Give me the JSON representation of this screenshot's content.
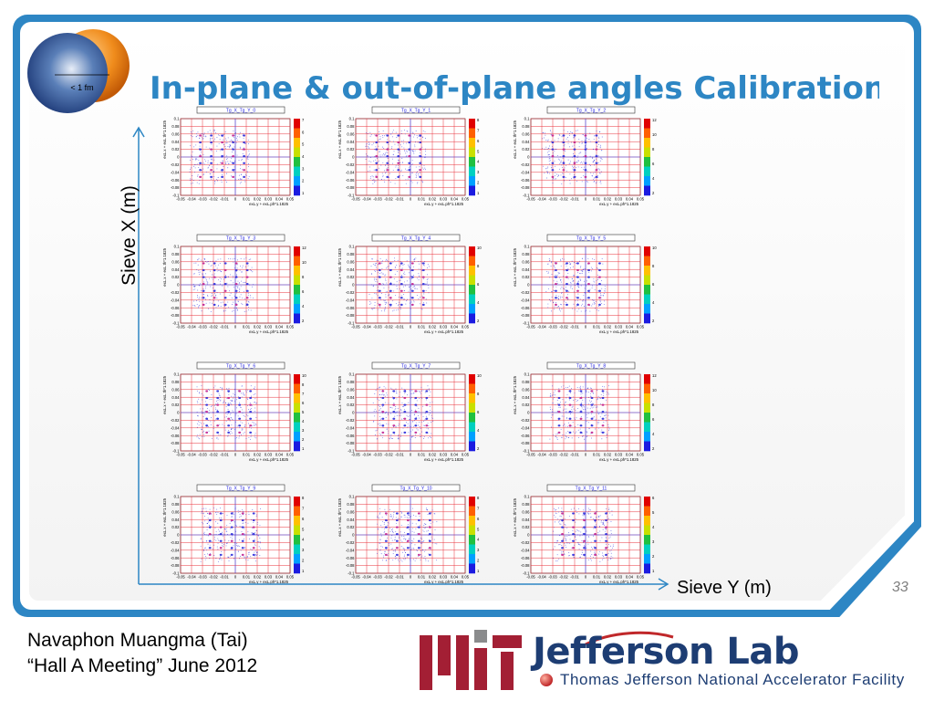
{
  "slide": {
    "title": "In-plane & out-of-plane angles Calibration",
    "logo_label": "< 1 fm",
    "y_axis_label": "Sieve X (m)",
    "x_axis_label": "Sieve Y (m)",
    "page_number": "33"
  },
  "footer": {
    "author": "Navaphon Muangma (Tai)",
    "event": "“Hall A Meeting” June 2012",
    "lab_name": "Jefferson Lab",
    "lab_full_name": "Thomas Jefferson National Accelerator Facility"
  },
  "colors": {
    "frame": "#2d86c4",
    "title": "#2d86c4",
    "grid": "#e8313b",
    "dots": "#2b2bdc",
    "mit_red": "#a31f34",
    "mit_gray": "#8a8b8c",
    "jlab_blue": "#1d3d73"
  },
  "plots": {
    "x_axis_title": "exL.y + exL.ph*1.1825",
    "y_axis_title": "exL.x + exL.th*1.1825",
    "x_ticks": [
      "-0.05",
      "-0.04",
      "-0.03",
      "-0.02",
      "-0.01",
      "0",
      "0.01",
      "0.02",
      "0.03",
      "0.04",
      "0.05"
    ],
    "y_ticks": [
      "0.1",
      "0.08",
      "0.06",
      "0.04",
      "0.02",
      "0",
      "-0.02",
      "-0.04",
      "-0.06",
      "-0.08",
      "-0.1"
    ],
    "panels": [
      {
        "title": "Tg_X_Tg_Y_0",
        "z_ticks": [
          "7",
          "6",
          "5",
          "4",
          "3",
          "2",
          "1"
        ],
        "row": 0,
        "col": 0
      },
      {
        "title": "Tg_X_Tg_Y_1",
        "z_ticks": [
          "8",
          "7",
          "6",
          "5",
          "4",
          "3",
          "2",
          "1"
        ],
        "row": 0,
        "col": 1
      },
      {
        "title": "Tg_X_Tg_Y_2",
        "z_ticks": [
          "12",
          "10",
          "8",
          "6",
          "4",
          "2"
        ],
        "row": 0,
        "col": 2
      },
      {
        "title": "Tg_X_Tg_Y_3",
        "z_ticks": [
          "12",
          "10",
          "8",
          "6",
          "4",
          "2"
        ],
        "row": 1,
        "col": 0
      },
      {
        "title": "Tg_X_Tg_Y_4",
        "z_ticks": [
          "10",
          "8",
          "6",
          "4",
          "2"
        ],
        "row": 1,
        "col": 1
      },
      {
        "title": "Tg_X_Tg_Y_5",
        "z_ticks": [
          "10",
          "8",
          "6",
          "4",
          "2"
        ],
        "row": 1,
        "col": 2
      },
      {
        "title": "Tg_X_Tg_Y_6",
        "z_ticks": [
          "10",
          "8",
          "7",
          "6",
          "5",
          "4",
          "3",
          "2",
          "1"
        ],
        "row": 2,
        "col": 0
      },
      {
        "title": "Tg_X_Tg_Y_7",
        "z_ticks": [
          "10",
          "8",
          "6",
          "4",
          "2"
        ],
        "row": 2,
        "col": 1
      },
      {
        "title": "Tg_X_Tg_Y_8",
        "z_ticks": [
          "12",
          "10",
          "8",
          "6",
          "4",
          "2"
        ],
        "row": 2,
        "col": 2
      },
      {
        "title": "Tg_X_Tg_Y_9",
        "z_ticks": [
          "8",
          "7",
          "6",
          "5",
          "4",
          "3",
          "2",
          "1"
        ],
        "row": 3,
        "col": 0
      },
      {
        "title": "Tg_X_Tg_Y_10",
        "z_ticks": [
          "8",
          "7",
          "6",
          "5",
          "4",
          "3",
          "2",
          "1"
        ],
        "row": 3,
        "col": 1
      },
      {
        "title": "Tg_X_Tg_Y_11",
        "z_ticks": [
          "6",
          "5",
          "4",
          "3",
          "2",
          "1"
        ],
        "row": 3,
        "col": 2
      }
    ]
  }
}
